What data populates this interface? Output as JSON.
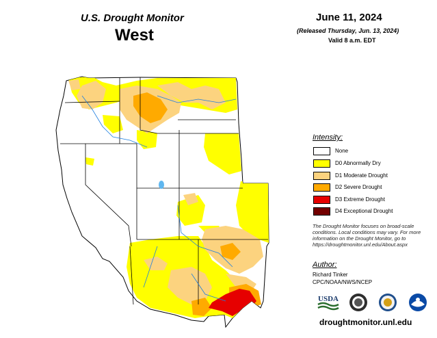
{
  "header": {
    "title_line1": "U.S. Drought Monitor",
    "title_line2": "West",
    "date": "June 11, 2024",
    "released": "(Released Thursday, Jun. 13, 2024)",
    "valid": "Valid 8 a.m. EDT"
  },
  "legend": {
    "title": "Intensity:",
    "items": [
      {
        "label": "None",
        "color": "#ffffff"
      },
      {
        "label": "D0 Abnormally Dry",
        "color": "#ffff00"
      },
      {
        "label": "D1 Moderate Drought",
        "color": "#fcd37f"
      },
      {
        "label": "D2 Severe Drought",
        "color": "#ffaa00"
      },
      {
        "label": "D3 Extreme Drought",
        "color": "#e60000"
      },
      {
        "label": "D4 Exceptional Drought",
        "color": "#730000"
      }
    ]
  },
  "note": "The Drought Monitor focuses on broad-scale conditions. Local conditions may vary. For more information on the Drought Monitor, go to https://droughtmonitor.unl.edu/About.aspx",
  "author": {
    "title": "Author:",
    "name": "Richard Tinker",
    "org": "CPC/NOAA/NWS/NCEP"
  },
  "logos": {
    "usda": "USDA"
  },
  "footer": {
    "url": "droughtmonitor.unl.edu"
  }
}
